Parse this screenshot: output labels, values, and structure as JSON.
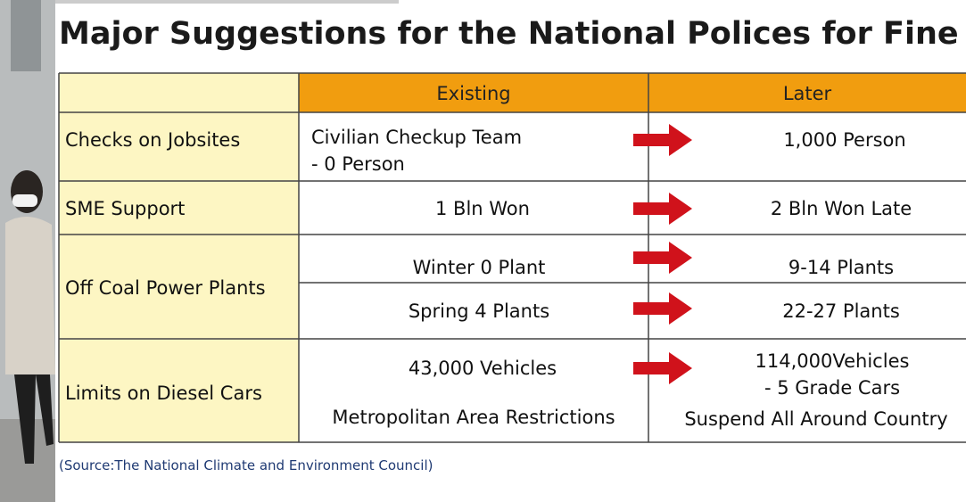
{
  "title": "Major Suggestions for the National Polices for Fine Dust",
  "table": {
    "header": [
      "Existing",
      "Later"
    ],
    "rows": [
      {
        "label": "Checks on Jobsites",
        "existing": [
          "Civilian Checkup Team",
          "- 0 Person"
        ],
        "later": [
          "1,000 Person"
        ]
      },
      {
        "label": "SME Support",
        "existing": [
          "1 Bln Won"
        ],
        "later": [
          "2 Bln Won Late"
        ]
      },
      {
        "label": "Off Coal Power Plants",
        "existing": [
          "Winter 0 Plant",
          "Spring 4 Plants"
        ],
        "later": [
          "9-14 Plants",
          "22-27 Plants"
        ]
      },
      {
        "label": "Limits on Diesel Cars",
        "existing": [
          "43,000 Vehicles",
          "Metropolitan Area Restrictions"
        ],
        "later": [
          "114,000Vehicles",
          "- 5 Grade Cars",
          "Suspend All Around Country"
        ]
      }
    ]
  },
  "source": "(Source:The National Climate and Environment Council)"
}
